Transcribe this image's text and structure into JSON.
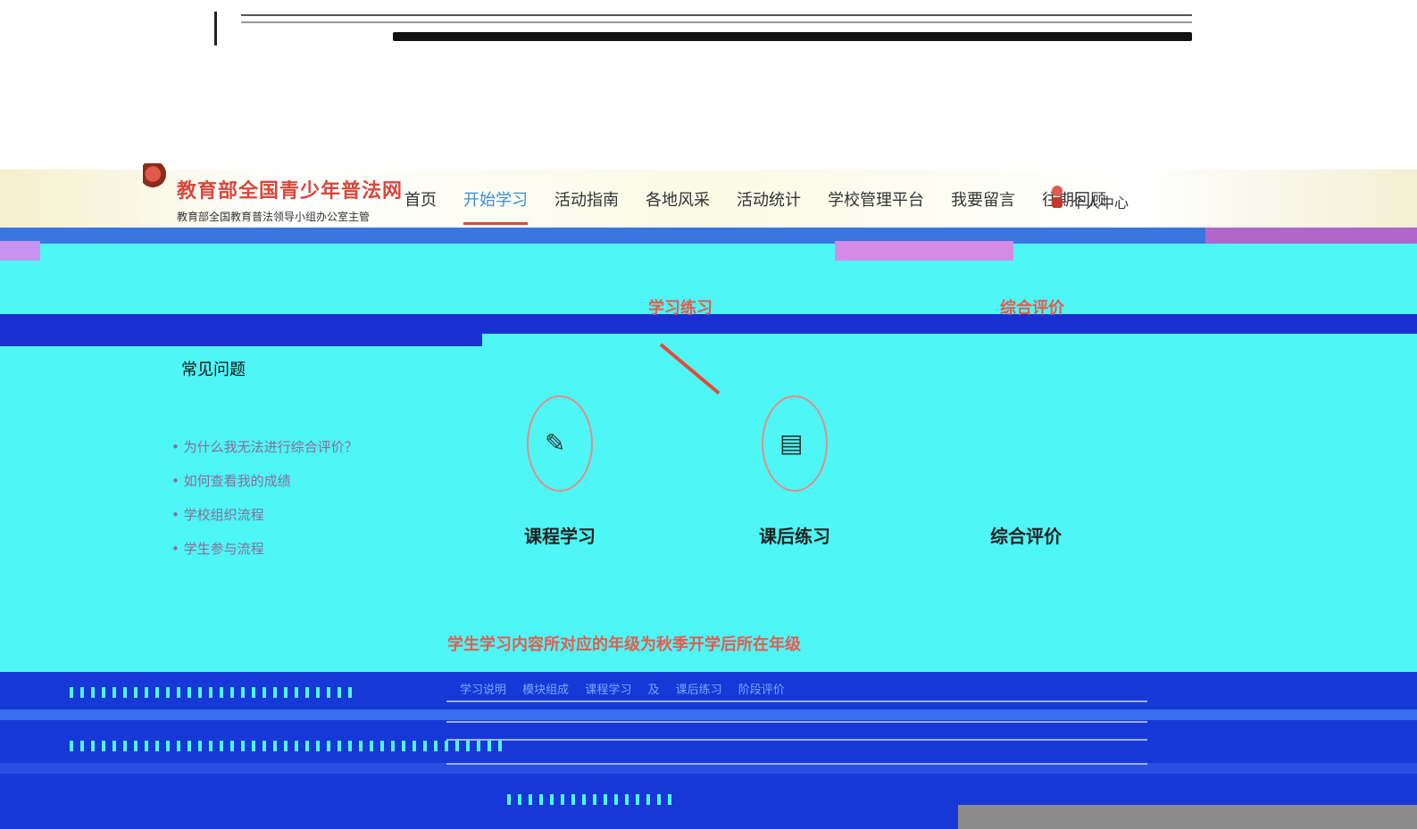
{
  "site": {
    "title": "教育部全国青少年普法网",
    "subtitle": "教育部全国教育普法领导小组办公室主管"
  },
  "nav": {
    "items": [
      {
        "label": "首页",
        "active": false
      },
      {
        "label": "开始学习",
        "active": true
      },
      {
        "label": "活动指南",
        "active": false
      },
      {
        "label": "各地风采",
        "active": false
      },
      {
        "label": "活动统计",
        "active": false
      },
      {
        "label": "学校管理平台",
        "active": false
      },
      {
        "label": "我要留言",
        "active": false
      },
      {
        "label": "往期回顾",
        "active": false
      }
    ],
    "user_center": "个人中心"
  },
  "faq": {
    "title": "常见问题",
    "items": [
      "为什么我无法进行综合评价？",
      "如何查看我的成绩",
      "学校组织流程",
      "学生参与流程"
    ]
  },
  "steps": {
    "hint_practice": "学习练习",
    "hint_evaluation": "综合评价",
    "cards": [
      {
        "label": "课程学习",
        "icon": "book-icon"
      },
      {
        "label": "课后练习",
        "icon": "clipboard-icon"
      },
      {
        "label": "综合评价",
        "icon": "evaluation-icon"
      }
    ]
  },
  "notice": "学生学习内容所对应的年级为秋季开学后所在年级",
  "flow": [
    "学习说明",
    "模块组成",
    "课程学习",
    "及",
    "课后练习",
    "阶段评价"
  ],
  "colors": {
    "brand_red": "#d9473d",
    "nav_active": "#3a8fd6",
    "band_blue": "#3a76e0",
    "cyan": "#4ef6f6"
  }
}
